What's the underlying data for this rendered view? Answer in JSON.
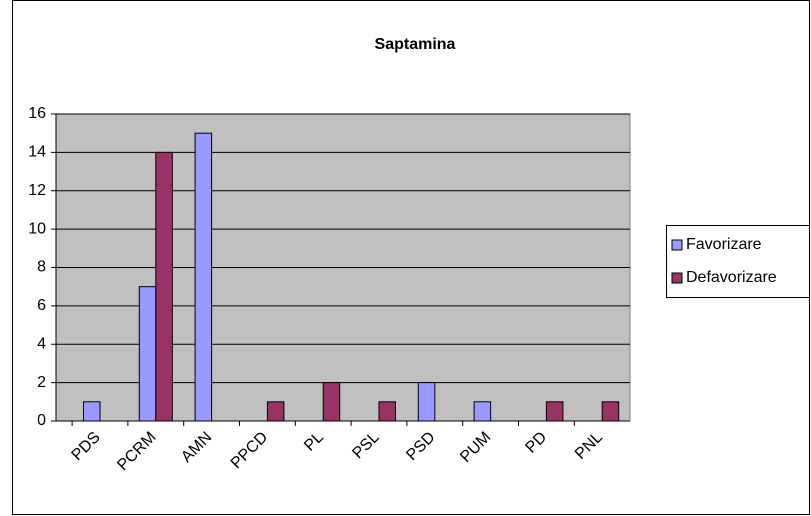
{
  "chart_data": {
    "type": "bar",
    "title": "Saptamina",
    "categories": [
      "PDS",
      "PCRM",
      "AMN",
      "PPCD",
      "PL",
      "PSL",
      "PSD",
      "PUM",
      "PD",
      "PNL"
    ],
    "series": [
      {
        "name": "Favorizare",
        "color": "#9999ff",
        "values": [
          1,
          7,
          15,
          0,
          0,
          0,
          2,
          1,
          0,
          0
        ]
      },
      {
        "name": "Defavorizare",
        "color": "#993366",
        "values": [
          0,
          14,
          0,
          1,
          2,
          1,
          0,
          0,
          1,
          1
        ]
      }
    ],
    "ylim": [
      0,
      16
    ],
    "yticks": [
      0,
      2,
      4,
      6,
      8,
      10,
      12,
      14,
      16
    ],
    "grid": true,
    "legend": "right"
  }
}
